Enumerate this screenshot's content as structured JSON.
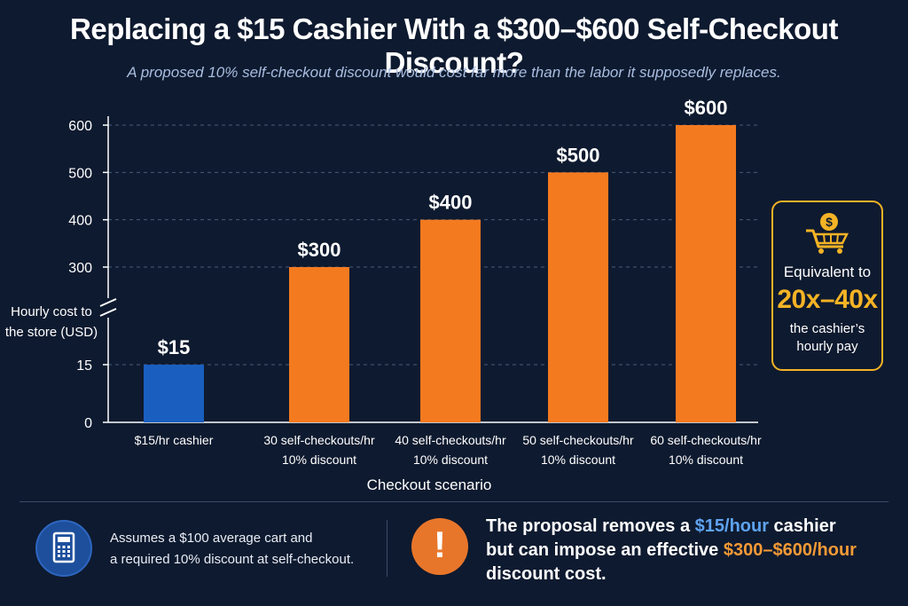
{
  "title": "Replacing a $15 Cashier With a $300–$600 Self-Checkout Discount?",
  "subtitle": "A proposed 10% self-checkout discount would cost far more than the labor it supposedly replaces.",
  "chart_data": {
    "type": "bar",
    "categories": [
      [
        "$15/hr cashier"
      ],
      [
        "30 self-checkouts/hr",
        "10% discount"
      ],
      [
        "40 self-checkouts/hr",
        "10% discount"
      ],
      [
        "50 self-checkouts/hr",
        "10% discount"
      ],
      [
        "60 self-checkouts/hr",
        "10% discount"
      ]
    ],
    "values": [
      15,
      300,
      400,
      500,
      600
    ],
    "data_labels": [
      "$15",
      "$300",
      "$400",
      "$500",
      "$600"
    ],
    "bar_colors": [
      "#1a5fbf",
      "#f47a1f",
      "#f47a1f",
      "#f47a1f",
      "#f47a1f"
    ],
    "xlabel": "Checkout scenario",
    "ylabel": [
      "Hourly cost to",
      "the store (USD)"
    ],
    "y_ticks_lower": [
      0,
      15
    ],
    "y_ticks_upper": [
      300,
      400,
      500,
      600
    ],
    "axis_break": true,
    "grid": "dashed horizontal"
  },
  "callout": {
    "icon": "shopping-cart-dollar-icon",
    "line1": "Equivalent to",
    "multiplier": "20x–40x",
    "line3a": "the cashier’s",
    "line3b": "hourly pay",
    "color": "#f5b325"
  },
  "notes": {
    "left_icon": "calculator-icon",
    "left_line1": "Assumes a $100 average cart and",
    "left_line2": "a required 10% discount at self-checkout.",
    "right_icon": "exclamation-icon",
    "right_p1": "The proposal removes a ",
    "right_hl1": "$15/hour",
    "right_p2": " cashier",
    "right_p3": "but can impose an effective ",
    "right_hl2": "$300–$600/hour",
    "right_p4": "discount cost."
  }
}
